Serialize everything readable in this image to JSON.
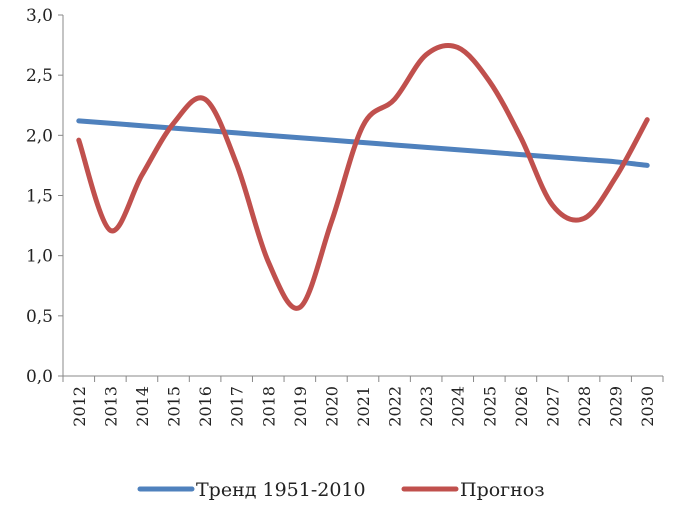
{
  "chart_data": {
    "type": "line",
    "title": "",
    "xlabel": "",
    "ylabel": "",
    "ylim": [
      0,
      3
    ],
    "y_ticks": [
      "0,0",
      "0,5",
      "1,0",
      "1,5",
      "2,0",
      "2,5",
      "3,0"
    ],
    "y_tick_values": [
      0,
      0.5,
      1,
      1.5,
      2,
      2.5,
      3
    ],
    "categories": [
      "2012",
      "2013",
      "2014",
      "2015",
      "2016",
      "2017",
      "2018",
      "2019",
      "2020",
      "2021",
      "2022",
      "2023",
      "2024",
      "2025",
      "2026",
      "2027",
      "2028",
      "2029",
      "2030"
    ],
    "grid": false,
    "legend_position": "bottom",
    "series": [
      {
        "name": "Тренд 1951-2010",
        "color": "#4f81bd",
        "values": [
          2.12,
          2.1,
          2.08,
          2.06,
          2.04,
          2.02,
          2.0,
          1.98,
          1.96,
          1.94,
          1.92,
          1.9,
          1.88,
          1.86,
          1.84,
          1.82,
          1.8,
          1.78,
          1.75
        ]
      },
      {
        "name": "Прогноз",
        "color": "#c0504d",
        "values": [
          1.96,
          1.21,
          1.67,
          2.1,
          2.3,
          1.76,
          0.95,
          0.57,
          1.28,
          2.08,
          2.3,
          2.67,
          2.73,
          2.45,
          1.98,
          1.42,
          1.31,
          1.65,
          2.13
        ]
      }
    ]
  }
}
